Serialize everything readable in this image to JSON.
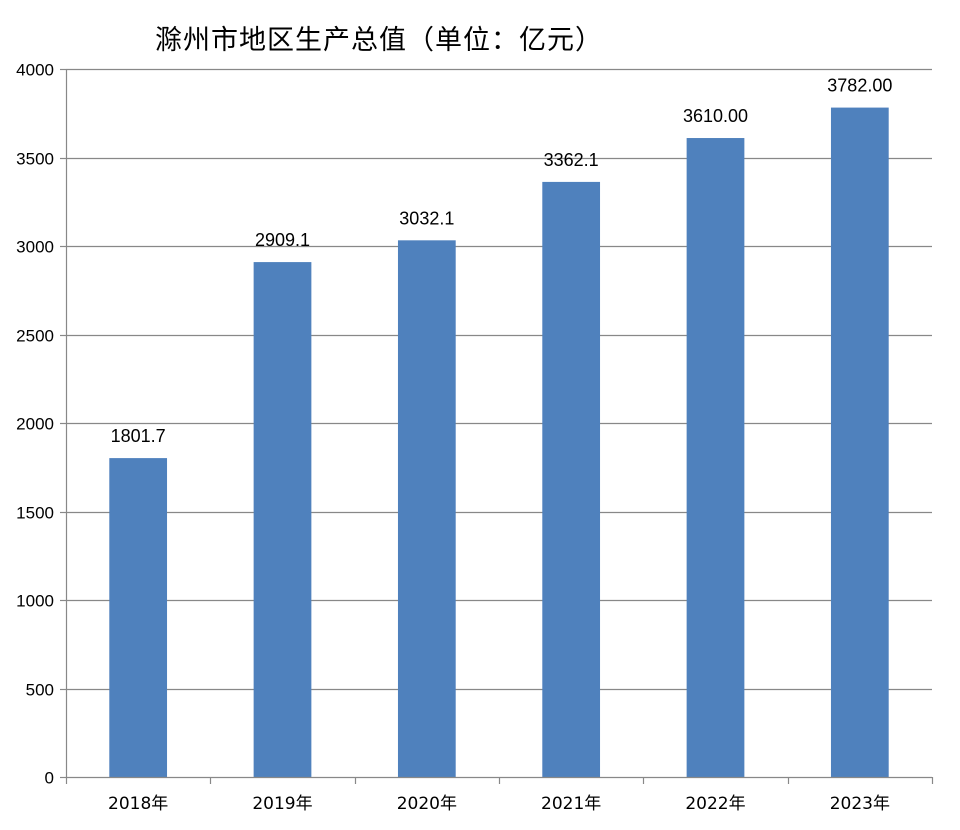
{
  "chart_data": {
    "type": "bar",
    "title": "滁州市地区生产总值（单位：亿元）",
    "xlabel": "",
    "ylabel": "",
    "categories": [
      "2018年",
      "2019年",
      "2020年",
      "2021年",
      "2022年",
      "2023年"
    ],
    "values": [
      1801.7,
      2909.1,
      3032.1,
      3362.1,
      3610.0,
      3782.0
    ],
    "data_labels": [
      "1801.7",
      "2909.1",
      "3032.1",
      "3362.1",
      "3610.00",
      "3782.00"
    ],
    "ylim": [
      0,
      4000
    ],
    "yticks": [
      0,
      500,
      1000,
      1500,
      2000,
      2500,
      3000,
      3500,
      4000
    ],
    "grid": true,
    "legend": "none",
    "bar_color": "#4f81bd"
  }
}
